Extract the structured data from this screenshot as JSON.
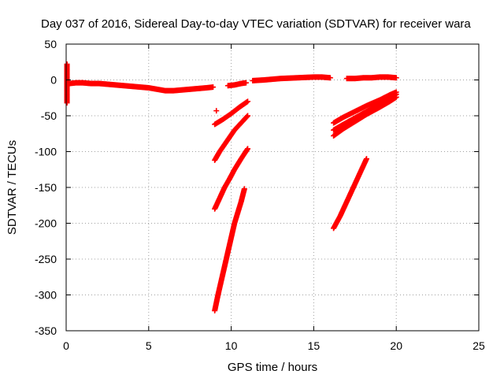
{
  "chart_data": {
    "type": "scatter",
    "title": "Day 037 of 2016, Sidereal Day-to-day VTEC variation (SDTVAR) for receiver wara",
    "xlabel": "GPS time / hours",
    "ylabel": "SDTVAR / TECUs",
    "xlim": [
      0,
      25
    ],
    "ylim": [
      -350,
      50
    ],
    "xticks": [
      "0",
      "5",
      "10",
      "15",
      "20",
      "25"
    ],
    "yticks": [
      "50",
      "0",
      "-50",
      "-100",
      "-150",
      "-200",
      "-250",
      "-300",
      "-350"
    ],
    "grid": true,
    "marker": "plus",
    "color": "#ff0000",
    "series": [
      {
        "x": [
          0.2,
          0.6,
          1.0,
          1.5,
          2.0,
          2.5,
          3.0,
          3.5,
          4.0,
          4.5,
          5.0,
          5.5,
          6.0,
          6.5,
          7.0,
          7.5,
          8.0,
          8.5,
          8.9
        ],
        "y": [
          -5,
          -4,
          -4,
          -5,
          -5,
          -6,
          -7,
          -8,
          -9,
          -10,
          -11,
          -13,
          -15,
          -15,
          -14,
          -13,
          -12,
          -11,
          -10
        ]
      },
      {
        "x": [
          9.8,
          10.2,
          10.6,
          10.9
        ],
        "y": [
          -8,
          -7,
          -5,
          -4
        ]
      },
      {
        "x": [
          11.3,
          12.0,
          13.0,
          14.0,
          15.0,
          15.5,
          16.0
        ],
        "y": [
          -1,
          0,
          2,
          3,
          4,
          4,
          3
        ]
      },
      {
        "x": [
          17.0,
          17.5,
          18.0,
          18.5,
          19.0,
          19.5,
          20.0
        ],
        "y": [
          2,
          2,
          3,
          3,
          4,
          4,
          3
        ]
      },
      {
        "x": [
          9.0,
          9.5,
          10.0,
          10.5,
          11.0
        ],
        "y": [
          -62,
          -55,
          -47,
          -38,
          -30
        ]
      },
      {
        "x": [
          9.0,
          9.3,
          9.6,
          9.9,
          10.2,
          10.6,
          11.0
        ],
        "y": [
          -112,
          -100,
          -90,
          -80,
          -70,
          -60,
          -50
        ]
      },
      {
        "x": [
          9.0,
          9.3,
          9.6,
          9.9,
          10.2,
          10.6,
          11.0
        ],
        "y": [
          -180,
          -165,
          -150,
          -138,
          -125,
          -110,
          -96
        ]
      },
      {
        "x": [
          9.0,
          9.2,
          9.4,
          9.6,
          9.8,
          10.0,
          10.2,
          10.4,
          10.6,
          10.8
        ],
        "y": [
          -322,
          -300,
          -280,
          -260,
          -240,
          -220,
          -200,
          -185,
          -170,
          -152
        ]
      },
      {
        "x": [
          16.2,
          16.8,
          17.5,
          18.2,
          19.0,
          19.6,
          20.0
        ],
        "y": [
          -60,
          -52,
          -44,
          -36,
          -28,
          -21,
          -17
        ]
      },
      {
        "x": [
          16.2,
          16.8,
          17.5,
          18.2,
          19.0,
          19.6,
          20.0
        ],
        "y": [
          -70,
          -62,
          -53,
          -44,
          -34,
          -26,
          -20
        ]
      },
      {
        "x": [
          16.2,
          16.8,
          17.5,
          18.2,
          19.0,
          19.6,
          20.0
        ],
        "y": [
          -78,
          -68,
          -58,
          -48,
          -38,
          -30,
          -24
        ]
      },
      {
        "x": [
          16.2,
          16.6,
          17.0,
          17.4,
          17.8,
          18.2
        ],
        "y": [
          -207,
          -190,
          -170,
          -150,
          -130,
          -110
        ]
      },
      {
        "x": [
          0.05,
          0.05,
          0.05
        ],
        "y": [
          22,
          18,
          -32
        ]
      },
      {
        "x": [
          9.1
        ],
        "y": [
          -43
        ]
      }
    ]
  }
}
